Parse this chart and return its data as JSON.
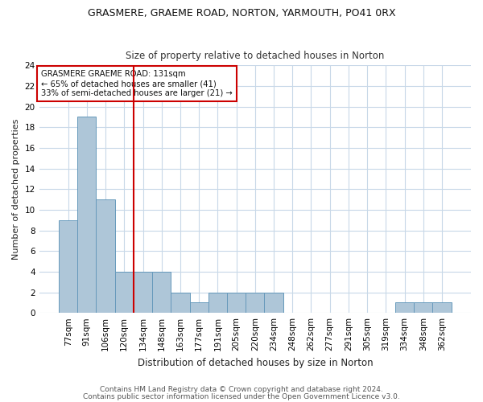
{
  "title1": "GRASMERE, GRAEME ROAD, NORTON, YARMOUTH, PO41 0RX",
  "title2": "Size of property relative to detached houses in Norton",
  "xlabel": "Distribution of detached houses by size in Norton",
  "ylabel": "Number of detached properties",
  "categories": [
    "77sqm",
    "91sqm",
    "106sqm",
    "120sqm",
    "134sqm",
    "148sqm",
    "163sqm",
    "177sqm",
    "191sqm",
    "205sqm",
    "220sqm",
    "234sqm",
    "248sqm",
    "262sqm",
    "277sqm",
    "291sqm",
    "305sqm",
    "319sqm",
    "334sqm",
    "348sqm",
    "362sqm"
  ],
  "values": [
    9,
    19,
    11,
    4,
    4,
    4,
    2,
    1,
    2,
    2,
    2,
    2,
    0,
    0,
    0,
    0,
    0,
    0,
    1,
    1,
    1
  ],
  "bar_color": "#aec6d8",
  "bar_edge_color": "#6699bb",
  "vline_x": 3.5,
  "vline_color": "#cc0000",
  "annotation_line1": "GRASMERE GRAEME ROAD: 131sqm",
  "annotation_line2": "← 65% of detached houses are smaller (41)",
  "annotation_line3": "33% of semi-detached houses are larger (21) →",
  "annotation_box_color": "#cc0000",
  "ylim": [
    0,
    24
  ],
  "yticks": [
    0,
    2,
    4,
    6,
    8,
    10,
    12,
    14,
    16,
    18,
    20,
    22,
    24
  ],
  "bg_color": "#ffffff",
  "grid_color": "#c8d8e8",
  "footer1": "Contains HM Land Registry data © Crown copyright and database right 2024.",
  "footer2": "Contains public sector information licensed under the Open Government Licence v3.0.",
  "title1_fontsize": 9,
  "title2_fontsize": 8.5,
  "ylabel_fontsize": 8,
  "xlabel_fontsize": 8.5,
  "tick_fontsize": 7.5,
  "footer_fontsize": 6.5
}
